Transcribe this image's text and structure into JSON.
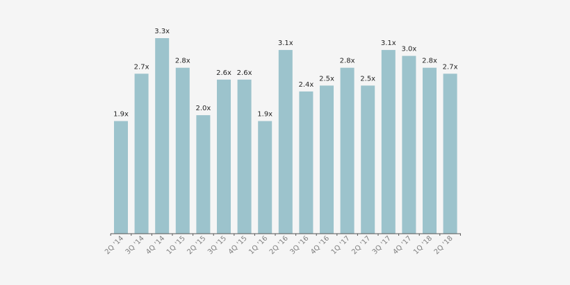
{
  "chart_data": {
    "type": "bar",
    "title": "",
    "xlabel": "",
    "ylabel": "",
    "categories": [
      "2Q '14",
      "3Q '14",
      "4Q '14",
      "1Q '15",
      "2Q '15",
      "3Q '15",
      "4Q '15",
      "1Q '16",
      "2Q '16",
      "3Q '16",
      "4Q '16",
      "1Q '17",
      "2Q '17",
      "3Q '17",
      "4Q '17",
      "1Q '18",
      "2Q '18"
    ],
    "values": [
      1.9,
      2.7,
      3.3,
      2.8,
      2.0,
      2.6,
      2.6,
      1.9,
      3.1,
      2.4,
      2.5,
      2.8,
      2.5,
      3.1,
      3.0,
      2.8,
      2.7
    ],
    "data_labels": [
      "1.9x",
      "2.7x",
      "3.3x",
      "2.8x",
      "2.0x",
      "2.6x",
      "2.6x",
      "1.9x",
      "3.1x",
      "2.4x",
      "2.5x",
      "2.8x",
      "2.5x",
      "3.1x",
      "3.0x",
      "2.8x",
      "2.7x"
    ],
    "ylim": [
      0,
      3.3
    ],
    "grid": false,
    "colors": {
      "bar": "#9cc3cc",
      "axis": "#555555",
      "label": "#222222",
      "tick_label": "#7f7f7f"
    }
  }
}
